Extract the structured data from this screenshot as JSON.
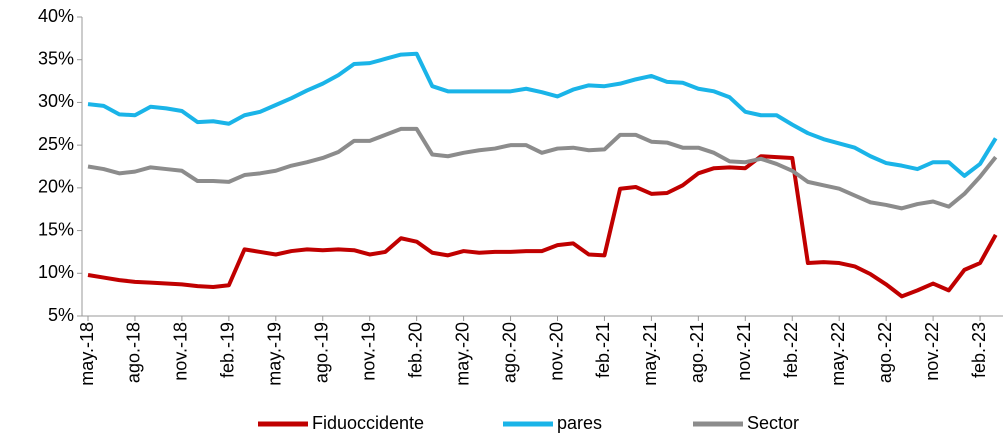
{
  "chart_data": {
    "type": "line",
    "categories": [
      "may.-18",
      null,
      null,
      "ago.-18",
      null,
      null,
      "nov.-18",
      null,
      null,
      "feb.-19",
      null,
      null,
      "may.-19",
      null,
      null,
      "ago.-19",
      null,
      null,
      "nov.-19",
      null,
      null,
      "feb.-20",
      null,
      null,
      "may.-20",
      null,
      null,
      "ago.-20",
      null,
      null,
      "nov.-20",
      null,
      null,
      "feb.-21",
      null,
      null,
      "may.-21",
      null,
      null,
      "ago.-21",
      null,
      null,
      "nov.-21",
      null,
      null,
      "feb.-22",
      null,
      null,
      "may.-22",
      null,
      null,
      "ago.-22",
      null,
      null,
      "nov.-22",
      null,
      null,
      "feb.-23",
      null
    ],
    "series": [
      {
        "name": "Fiduoccidente",
        "color": "#c00000",
        "values": [
          9.8,
          9.5,
          9.2,
          9.0,
          8.9,
          8.8,
          8.7,
          8.5,
          8.4,
          8.6,
          12.8,
          12.5,
          12.2,
          12.6,
          12.8,
          12.7,
          12.8,
          12.7,
          12.2,
          12.5,
          14.1,
          13.7,
          12.4,
          12.1,
          12.6,
          12.4,
          12.5,
          12.5,
          12.6,
          12.6,
          13.3,
          13.5,
          12.2,
          12.1,
          19.9,
          20.1,
          19.3,
          19.4,
          20.3,
          21.7,
          22.3,
          22.4,
          22.3,
          23.7,
          23.6,
          23.5,
          11.2,
          11.3,
          11.2,
          10.8,
          9.9,
          8.7,
          7.3,
          8.0,
          8.8,
          8.0,
          10.4,
          11.2,
          14.5
        ]
      },
      {
        "name": "pares",
        "color": "#1ab4e8",
        "values": [
          29.8,
          29.6,
          28.6,
          28.5,
          29.5,
          29.3,
          29.0,
          27.7,
          27.8,
          27.5,
          28.5,
          28.9,
          29.7,
          30.5,
          31.4,
          32.2,
          33.2,
          34.5,
          34.6,
          35.1,
          35.6,
          35.7,
          31.9,
          31.3,
          31.3,
          31.3,
          31.3,
          31.3,
          31.6,
          31.2,
          30.7,
          31.5,
          32.0,
          31.9,
          32.2,
          32.7,
          33.1,
          32.4,
          32.3,
          31.6,
          31.3,
          30.6,
          28.9,
          28.5,
          28.5,
          27.4,
          26.4,
          25.7,
          25.2,
          24.7,
          23.7,
          22.9,
          22.6,
          22.2,
          23.0,
          23.0,
          21.4,
          22.8,
          25.8
        ]
      },
      {
        "name": "Sector",
        "color": "#8c8c8c",
        "values": [
          22.5,
          22.2,
          21.7,
          21.9,
          22.4,
          22.2,
          22.0,
          20.8,
          20.8,
          20.7,
          21.5,
          21.7,
          22.0,
          22.6,
          23.0,
          23.5,
          24.2,
          25.5,
          25.5,
          26.2,
          26.9,
          26.9,
          23.9,
          23.7,
          24.1,
          24.4,
          24.6,
          25.0,
          25.0,
          24.1,
          24.6,
          24.7,
          24.4,
          24.5,
          26.2,
          26.2,
          25.4,
          25.3,
          24.7,
          24.7,
          24.1,
          23.1,
          23.0,
          23.4,
          22.8,
          22.0,
          20.7,
          20.3,
          19.9,
          19.1,
          18.3,
          18.0,
          17.6,
          18.1,
          18.4,
          17.8,
          19.3,
          21.3,
          23.6
        ]
      }
    ],
    "ylim": [
      5,
      40
    ],
    "yticks": [
      {
        "value": 5,
        "label": "5%"
      },
      {
        "value": 10,
        "label": "10%"
      },
      {
        "value": 15,
        "label": "15%"
      },
      {
        "value": 20,
        "label": "20%"
      },
      {
        "value": 25,
        "label": "25%"
      },
      {
        "value": 30,
        "label": "30%"
      },
      {
        "value": 35,
        "label": "35%"
      },
      {
        "value": 40,
        "label": "40%"
      }
    ],
    "grid": false,
    "legend": "bottom"
  }
}
